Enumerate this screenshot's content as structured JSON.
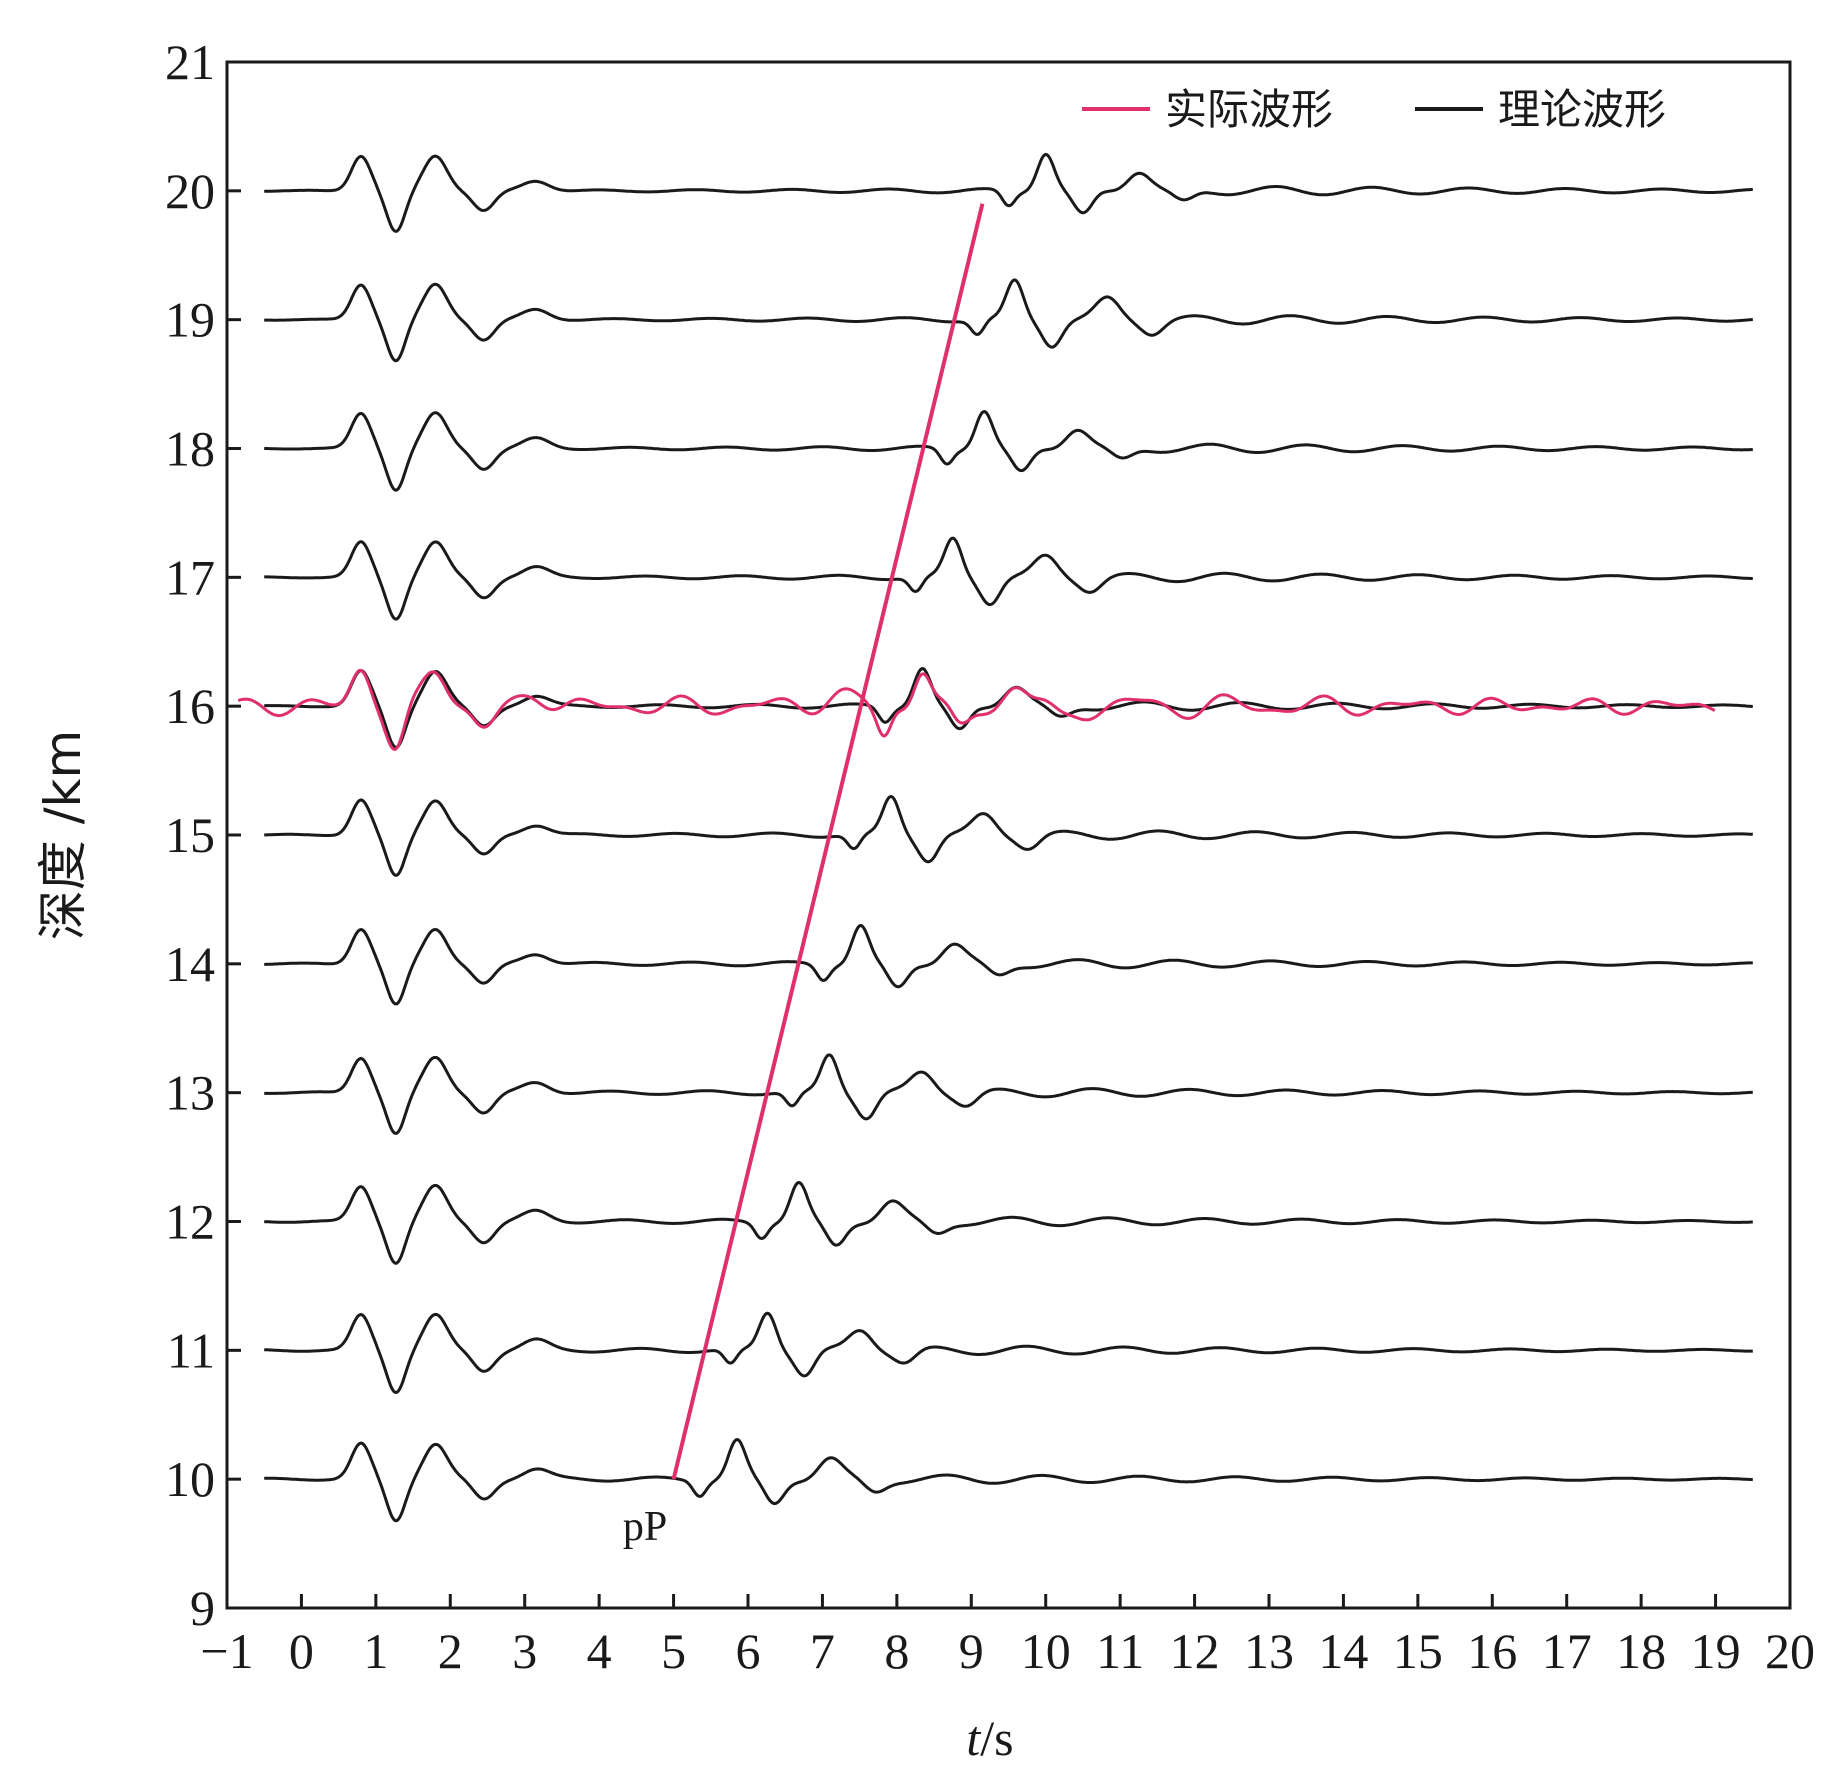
{
  "chart_data": {
    "type": "line",
    "xlabel_var": "t",
    "xlabel_unit": "/s",
    "ylabel": "深度 /km",
    "xlim": [
      -1,
      20
    ],
    "ylim": [
      9,
      21
    ],
    "x_ticks": [
      -1,
      0,
      1,
      2,
      3,
      4,
      5,
      6,
      7,
      8,
      9,
      10,
      11,
      12,
      13,
      14,
      15,
      16,
      17,
      18,
      19,
      20
    ],
    "x_tick_labels": [
      "−1",
      "0",
      "1",
      "2",
      "3",
      "4",
      "5",
      "6",
      "7",
      "8",
      "9",
      "10",
      "11",
      "12",
      "13",
      "14",
      "15",
      "16",
      "17",
      "18",
      "19",
      "20"
    ],
    "y_ticks": [
      9,
      10,
      11,
      12,
      13,
      14,
      15,
      16,
      17,
      18,
      19,
      20,
      21
    ],
    "y_tick_labels": [
      "9",
      "10",
      "11",
      "12",
      "13",
      "14",
      "15",
      "16",
      "17",
      "18",
      "19",
      "20",
      "21"
    ],
    "grid": false,
    "legend_position": "top-right",
    "series": [
      {
        "name": "实际波形",
        "color": "#e0306a",
        "depths": [
          16
        ]
      },
      {
        "name": "理论波形",
        "color": "#1a1a1a",
        "depths": [
          10,
          11,
          12,
          13,
          14,
          15,
          16,
          17,
          18,
          19,
          20
        ]
      }
    ],
    "trace_start_time": -0.5,
    "trace_end_time": 19.5,
    "pP_line": {
      "label": "pP",
      "color": "#e0306a",
      "points": [
        [
          5.0,
          10.0
        ],
        [
          9.15,
          19.9
        ]
      ]
    }
  }
}
